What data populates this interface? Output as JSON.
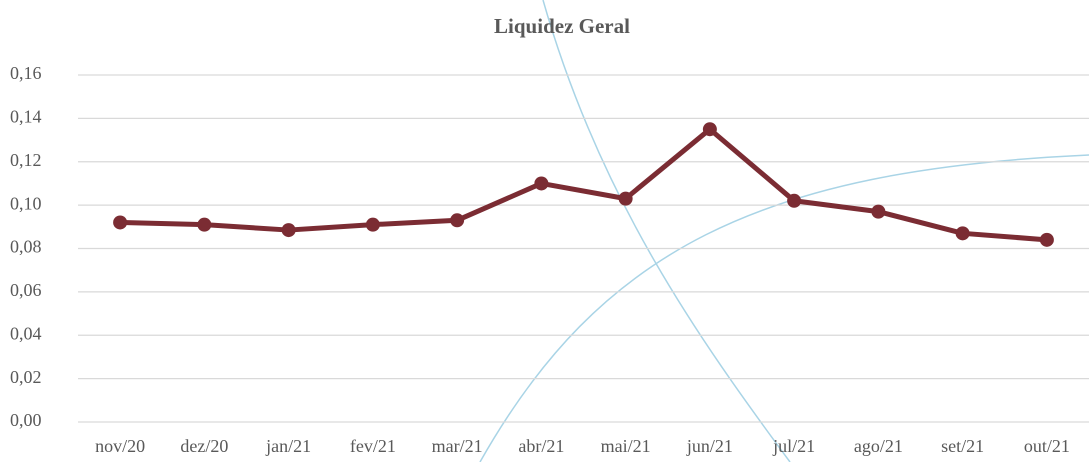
{
  "chart_data": {
    "type": "line",
    "title": "Liquidez Geral",
    "categories": [
      "nov/20",
      "dez/20",
      "jan/21",
      "fev/21",
      "mar/21",
      "abr/21",
      "mai/21",
      "jun/21",
      "jul/21",
      "ago/21",
      "set/21",
      "out/21"
    ],
    "series": [
      {
        "name": "Liquidez Geral",
        "color": "#7b2c33",
        "values": [
          0.092,
          0.091,
          0.0885,
          0.091,
          0.093,
          0.11,
          0.103,
          0.135,
          0.102,
          0.097,
          0.087,
          0.084
        ]
      }
    ],
    "ylim": [
      0,
      0.16
    ],
    "yticks": [
      {
        "value": 0,
        "label": "0,00"
      },
      {
        "value": 0.02,
        "label": "0,02"
      },
      {
        "value": 0.04,
        "label": "0,04"
      },
      {
        "value": 0.06,
        "label": "0,06"
      },
      {
        "value": 0.08,
        "label": "0,08"
      },
      {
        "value": 0.1,
        "label": "0,10"
      },
      {
        "value": 0.12,
        "label": "0,12"
      },
      {
        "value": 0.14,
        "label": "0,14"
      },
      {
        "value": 0.16,
        "label": "0,16"
      }
    ],
    "grid": true
  }
}
